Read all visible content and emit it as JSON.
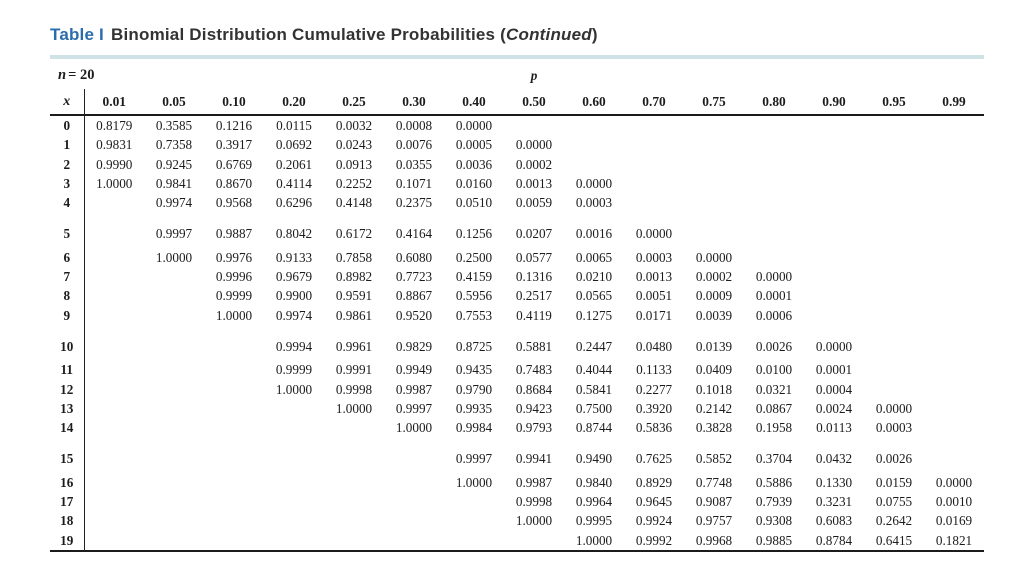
{
  "title": {
    "label": "Table I",
    "text": "Binomial Distribution Cumulative Probabilities",
    "continued": "Continued"
  },
  "accent_colors": {
    "title_blue": "#2b6cac",
    "teal_rule": "#cfe3e7"
  },
  "table": {
    "n_label": "n",
    "n_value": "= 20",
    "p_label": "p",
    "x_label": "x",
    "p_values": [
      "0.01",
      "0.05",
      "0.10",
      "0.20",
      "0.25",
      "0.30",
      "0.40",
      "0.50",
      "0.60",
      "0.70",
      "0.75",
      "0.80",
      "0.90",
      "0.95",
      "0.99"
    ],
    "rows": [
      {
        "x": "0",
        "values": [
          "0.8179",
          "0.3585",
          "0.1216",
          "0.0115",
          "0.0032",
          "0.0008",
          "0.0000",
          "",
          "",
          "",
          "",
          "",
          "",
          "",
          ""
        ]
      },
      {
        "x": "1",
        "values": [
          "0.9831",
          "0.7358",
          "0.3917",
          "0.0692",
          "0.0243",
          "0.0076",
          "0.0005",
          "0.0000",
          "",
          "",
          "",
          "",
          "",
          "",
          ""
        ]
      },
      {
        "x": "2",
        "values": [
          "0.9990",
          "0.9245",
          "0.6769",
          "0.2061",
          "0.0913",
          "0.0355",
          "0.0036",
          "0.0002",
          "",
          "",
          "",
          "",
          "",
          "",
          ""
        ]
      },
      {
        "x": "3",
        "values": [
          "1.0000",
          "0.9841",
          "0.8670",
          "0.4114",
          "0.2252",
          "0.1071",
          "0.0160",
          "0.0013",
          "0.0000",
          "",
          "",
          "",
          "",
          "",
          ""
        ]
      },
      {
        "x": "4",
        "values": [
          "",
          "0.9974",
          "0.9568",
          "0.6296",
          "0.4148",
          "0.2375",
          "0.0510",
          "0.0059",
          "0.0003",
          "",
          "",
          "",
          "",
          "",
          ""
        ]
      },
      {
        "x": "5",
        "values": [
          "",
          "0.9997",
          "0.9887",
          "0.8042",
          "0.6172",
          "0.4164",
          "0.1256",
          "0.0207",
          "0.0016",
          "0.0000",
          "",
          "",
          "",
          "",
          ""
        ]
      },
      {
        "x": "6",
        "values": [
          "",
          "1.0000",
          "0.9976",
          "0.9133",
          "0.7858",
          "0.6080",
          "0.2500",
          "0.0577",
          "0.0065",
          "0.0003",
          "0.0000",
          "",
          "",
          "",
          ""
        ]
      },
      {
        "x": "7",
        "values": [
          "",
          "",
          "0.9996",
          "0.9679",
          "0.8982",
          "0.7723",
          "0.4159",
          "0.1316",
          "0.0210",
          "0.0013",
          "0.0002",
          "0.0000",
          "",
          "",
          ""
        ]
      },
      {
        "x": "8",
        "values": [
          "",
          "",
          "0.9999",
          "0.9900",
          "0.9591",
          "0.8867",
          "0.5956",
          "0.2517",
          "0.0565",
          "0.0051",
          "0.0009",
          "0.0001",
          "",
          "",
          ""
        ]
      },
      {
        "x": "9",
        "values": [
          "",
          "",
          "1.0000",
          "0.9974",
          "0.9861",
          "0.9520",
          "0.7553",
          "0.4119",
          "0.1275",
          "0.0171",
          "0.0039",
          "0.0006",
          "",
          "",
          ""
        ]
      },
      {
        "x": "10",
        "values": [
          "",
          "",
          "",
          "0.9994",
          "0.9961",
          "0.9829",
          "0.8725",
          "0.5881",
          "0.2447",
          "0.0480",
          "0.0139",
          "0.0026",
          "0.0000",
          "",
          ""
        ]
      },
      {
        "x": "11",
        "values": [
          "",
          "",
          "",
          "0.9999",
          "0.9991",
          "0.9949",
          "0.9435",
          "0.7483",
          "0.4044",
          "0.1133",
          "0.0409",
          "0.0100",
          "0.0001",
          "",
          ""
        ]
      },
      {
        "x": "12",
        "values": [
          "",
          "",
          "",
          "1.0000",
          "0.9998",
          "0.9987",
          "0.9790",
          "0.8684",
          "0.5841",
          "0.2277",
          "0.1018",
          "0.0321",
          "0.0004",
          "",
          ""
        ]
      },
      {
        "x": "13",
        "values": [
          "",
          "",
          "",
          "",
          "1.0000",
          "0.9997",
          "0.9935",
          "0.9423",
          "0.7500",
          "0.3920",
          "0.2142",
          "0.0867",
          "0.0024",
          "0.0000",
          ""
        ]
      },
      {
        "x": "14",
        "values": [
          "",
          "",
          "",
          "",
          "",
          "1.0000",
          "0.9984",
          "0.9793",
          "0.8744",
          "0.5836",
          "0.3828",
          "0.1958",
          "0.0113",
          "0.0003",
          ""
        ]
      },
      {
        "x": "15",
        "values": [
          "",
          "",
          "",
          "",
          "",
          "",
          "0.9997",
          "0.9941",
          "0.9490",
          "0.7625",
          "0.5852",
          "0.3704",
          "0.0432",
          "0.0026",
          ""
        ]
      },
      {
        "x": "16",
        "values": [
          "",
          "",
          "",
          "",
          "",
          "",
          "1.0000",
          "0.9987",
          "0.9840",
          "0.8929",
          "0.7748",
          "0.5886",
          "0.1330",
          "0.0159",
          "0.0000"
        ]
      },
      {
        "x": "17",
        "values": [
          "",
          "",
          "",
          "",
          "",
          "",
          "",
          "0.9998",
          "0.9964",
          "0.9645",
          "0.9087",
          "0.7939",
          "0.3231",
          "0.0755",
          "0.0010"
        ]
      },
      {
        "x": "18",
        "values": [
          "",
          "",
          "",
          "",
          "",
          "",
          "",
          "1.0000",
          "0.9995",
          "0.9924",
          "0.9757",
          "0.9308",
          "0.6083",
          "0.2642",
          "0.0169"
        ]
      },
      {
        "x": "19",
        "values": [
          "",
          "",
          "",
          "",
          "",
          "",
          "",
          "",
          "1.0000",
          "0.9992",
          "0.9968",
          "0.9885",
          "0.8784",
          "0.6415",
          "0.1821"
        ]
      }
    ]
  }
}
